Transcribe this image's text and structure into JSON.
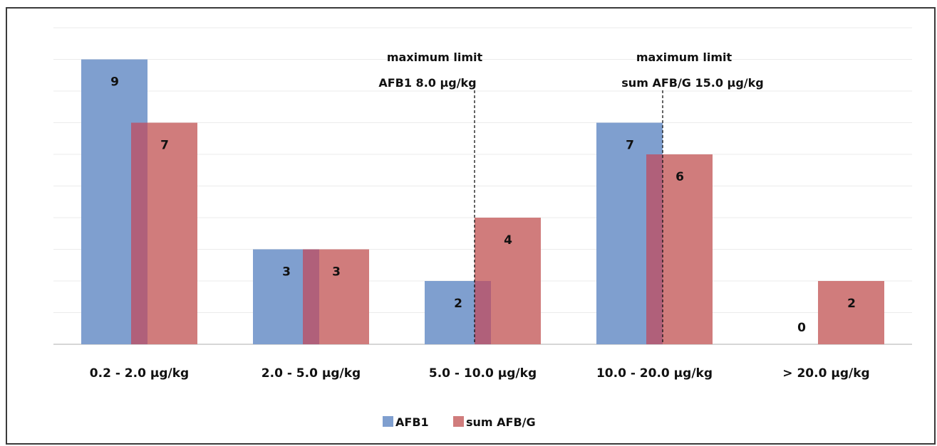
{
  "chart_data": {
    "type": "bar",
    "categories": [
      "0.2 - 2.0  µg/kg",
      "2.0 - 5.0  µg/kg",
      "5.0 - 10.0  µg/kg",
      "10.0 - 20.0  µg/kg",
      "> 20.0  µg/kg"
    ],
    "series": [
      {
        "name": "AFB1",
        "values": [
          9,
          3,
          2,
          7,
          0
        ],
        "color": "#7f9fcf"
      },
      {
        "name": "sum AFB/G",
        "values": [
          7,
          3,
          4,
          6,
          2
        ],
        "color": "#d07c7c"
      }
    ],
    "overlap_color": "#b0607a",
    "ylim": [
      0,
      10
    ],
    "grid": true,
    "legend_position": "bottom",
    "annotations": [
      {
        "line1": "maximum limit",
        "line2": "AFB1   8.0  µg/kg",
        "category_index": 2,
        "offset": 0.0
      },
      {
        "line1": "maximum limit",
        "line2": "sum AFB/G   15.0  µg/kg",
        "category_index": 3,
        "offset": 0.0
      }
    ]
  }
}
